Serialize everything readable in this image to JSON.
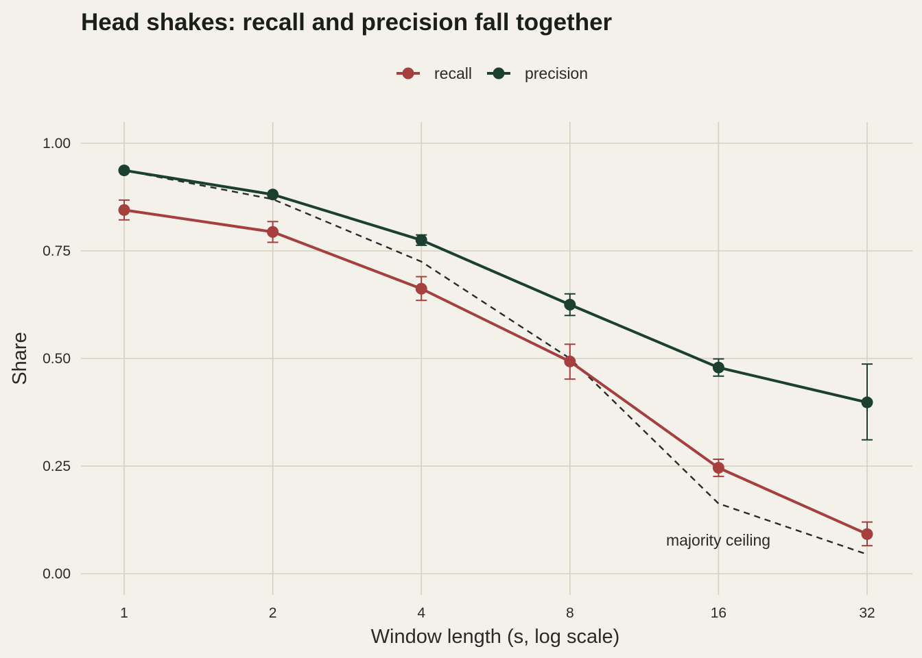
{
  "chart_data": {
    "type": "line",
    "title": "Head shakes: recall and precision fall together",
    "xlabel": "Window length (s, log scale)",
    "ylabel": "Share",
    "x_scale": "log2",
    "x": [
      1,
      2,
      4,
      8,
      16,
      32
    ],
    "x_tick_labels": [
      "1",
      "2",
      "4",
      "8",
      "16",
      "32"
    ],
    "y_ticks": [
      0,
      0.25,
      0.5,
      0.75,
      1.0
    ],
    "y_tick_labels": [
      "0.00",
      "0.25",
      "0.50",
      "0.75",
      "1.00"
    ],
    "ylim": [
      -0.05,
      1.05
    ],
    "grid": true,
    "legend_position": "top",
    "series": [
      {
        "name": "recall",
        "color": "#a5403f",
        "values": [
          0.845,
          0.794,
          0.662,
          0.493,
          0.246,
          0.092
        ],
        "err_low": [
          0.822,
          0.77,
          0.635,
          0.452,
          0.226,
          0.065
        ],
        "err_high": [
          0.868,
          0.818,
          0.69,
          0.533,
          0.266,
          0.12
        ]
      },
      {
        "name": "precision",
        "color": "#1c4030",
        "values": [
          0.937,
          0.881,
          0.775,
          0.625,
          0.479,
          0.398
        ],
        "err_low": [
          0.937,
          0.881,
          0.763,
          0.6,
          0.459,
          0.311
        ],
        "err_high": [
          0.937,
          0.881,
          0.787,
          0.65,
          0.499,
          0.487
        ]
      }
    ],
    "reference_line": {
      "label": "majority ceiling",
      "style": "dashed",
      "color": "#2a2a2a",
      "values": [
        0.937,
        0.87,
        0.725,
        0.5,
        0.163,
        0.045
      ]
    }
  }
}
